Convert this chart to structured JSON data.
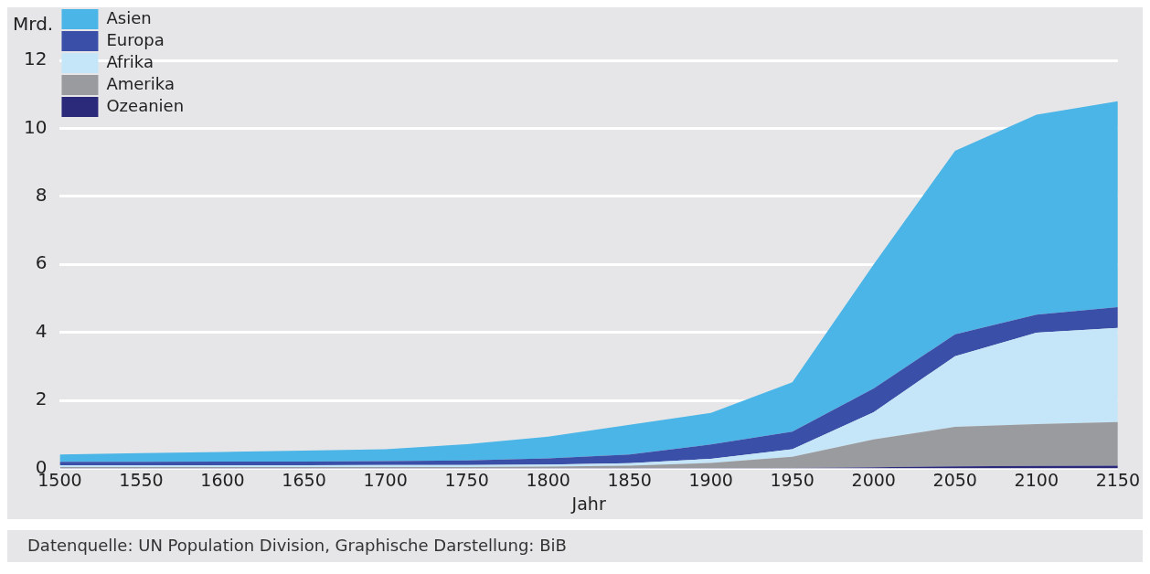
{
  "chart_data": {
    "type": "area",
    "stacked": true,
    "ylabel": "Mrd.",
    "xlabel": "Jahr",
    "x": [
      1500,
      1550,
      1600,
      1650,
      1700,
      1750,
      1800,
      1850,
      1900,
      1950,
      2000,
      2050,
      2100,
      2150
    ],
    "series": [
      {
        "name": "Ozeanien",
        "color": "#2b2a7a",
        "values": [
          0.01,
          0.01,
          0.01,
          0.01,
          0.01,
          0.01,
          0.01,
          0.01,
          0.01,
          0.01,
          0.03,
          0.06,
          0.07,
          0.08
        ]
      },
      {
        "name": "Amerika",
        "color": "#9a9b9e",
        "values": [
          0.03,
          0.03,
          0.03,
          0.03,
          0.03,
          0.03,
          0.04,
          0.07,
          0.15,
          0.33,
          0.82,
          1.16,
          1.23,
          1.28
        ]
      },
      {
        "name": "Afrika",
        "color": "#c4e6f8",
        "values": [
          0.05,
          0.05,
          0.05,
          0.05,
          0.06,
          0.06,
          0.06,
          0.07,
          0.12,
          0.22,
          0.8,
          2.08,
          2.69,
          2.77
        ]
      },
      {
        "name": "Europa",
        "color": "#3a4fa8",
        "values": [
          0.1,
          0.1,
          0.11,
          0.11,
          0.11,
          0.13,
          0.18,
          0.26,
          0.42,
          0.52,
          0.7,
          0.64,
          0.53,
          0.61
        ]
      },
      {
        "name": "Asien",
        "color": "#4ab5e6",
        "values": [
          0.22,
          0.26,
          0.28,
          0.32,
          0.35,
          0.48,
          0.64,
          0.87,
          0.93,
          1.45,
          3.65,
          5.4,
          5.88,
          6.06
        ]
      }
    ],
    "xlim": [
      1500,
      2150
    ],
    "xticks": [
      1500,
      1550,
      1600,
      1650,
      1700,
      1750,
      1800,
      1850,
      1900,
      1950,
      2000,
      2050,
      2100,
      2150
    ],
    "ylim": [
      0,
      12
    ],
    "yticks": [
      0,
      2,
      4,
      6,
      8,
      10,
      12
    ],
    "grid": "y",
    "legend": "top left",
    "annotations": [
      "Datenquelle: UN Population Division, Graphische Darstellung: BiB"
    ]
  }
}
